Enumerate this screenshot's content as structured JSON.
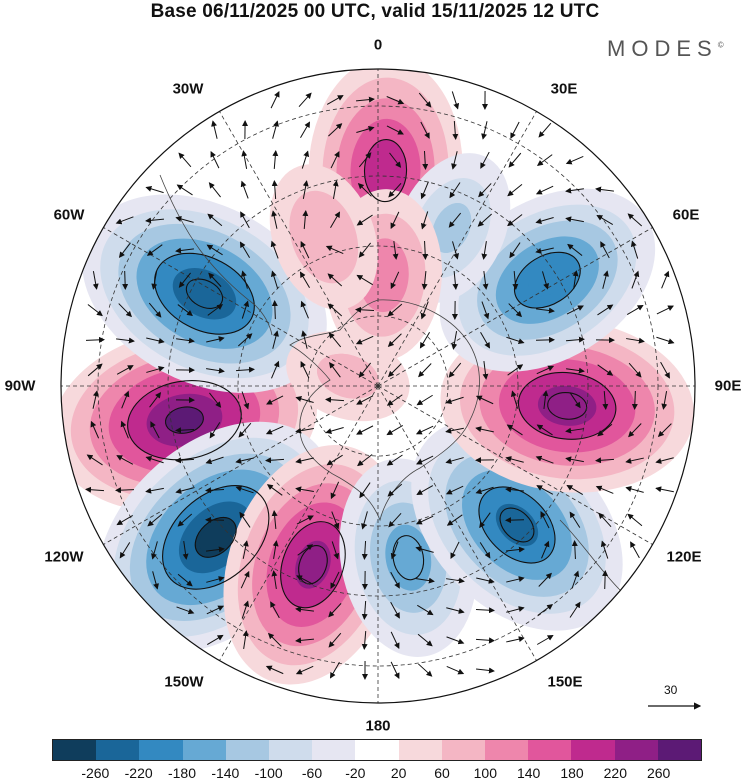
{
  "title": "Base 06/11/2025 00 UTC, valid 15/11/2025 12 UTC",
  "brand": {
    "name": "MODES",
    "mark": "©"
  },
  "lon_labels": {
    "n": "0",
    "ne": "30E",
    "e1": "60E",
    "e": "90E",
    "se1": "120E",
    "se": "150E",
    "s": "180",
    "sw": "150W",
    "sw1": "120W",
    "w": "90W",
    "nw1": "60W",
    "nw": "30W"
  },
  "colorbar": {
    "colors": [
      "#0f3d5c",
      "#1a6699",
      "#3389c1",
      "#66a9d4",
      "#a7c8e2",
      "#cfdcec",
      "#e6e6f2",
      "#ffffff",
      "#f7d9dc",
      "#f4b6c4",
      "#ee86ac",
      "#e1569c",
      "#bf2a8e",
      "#8f1f86",
      "#5c1a75"
    ],
    "ticks": [
      "-260",
      "-220",
      "-180",
      "-140",
      "-100",
      "-60",
      "-20",
      "20",
      "60",
      "100",
      "140",
      "180",
      "220",
      "260"
    ]
  },
  "reference_vector": {
    "label": "30"
  },
  "anomalies": [
    {
      "lon": -100,
      "r": 0.62,
      "value": 260
    },
    {
      "lon": -62,
      "r": 0.62,
      "value": -250
    },
    {
      "lon": -133,
      "r": 0.7,
      "value": -270
    },
    {
      "lon": -160,
      "r": 0.6,
      "value": 230
    },
    {
      "lon": 170,
      "r": 0.55,
      "value": -160
    },
    {
      "lon": 135,
      "r": 0.62,
      "value": -230
    },
    {
      "lon": 96,
      "r": 0.6,
      "value": 240
    },
    {
      "lon": 58,
      "r": 0.63,
      "value": -210
    },
    {
      "lon": 2,
      "r": 0.68,
      "value": 200
    },
    {
      "lon": 25,
      "r": 0.55,
      "value": -100
    },
    {
      "lon": 3,
      "r": 0.35,
      "value": 120
    },
    {
      "lon": -20,
      "r": 0.5,
      "value": 90
    },
    {
      "lon": -72,
      "r": 0.1,
      "value": 60
    }
  ]
}
